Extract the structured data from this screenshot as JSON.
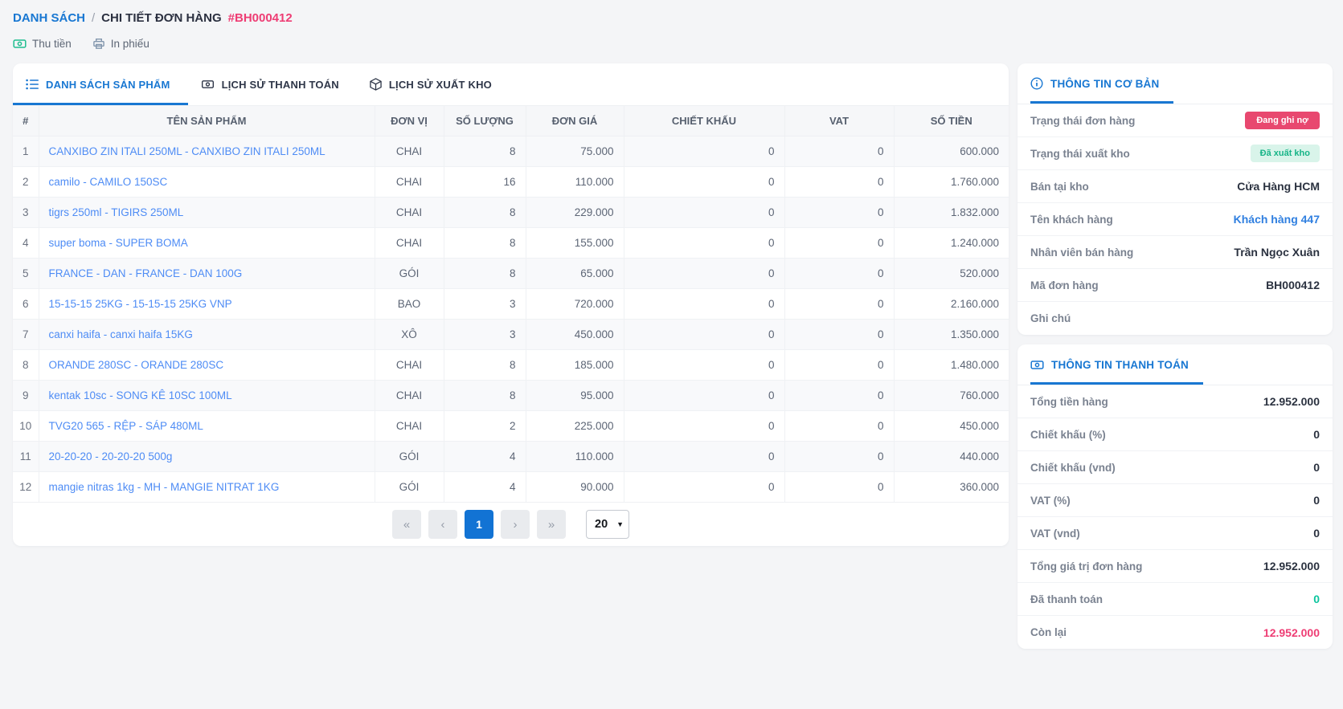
{
  "breadcrumb": {
    "list_label": "DANH SÁCH",
    "separator": "/",
    "current": "CHI TIẾT ĐƠN HÀNG",
    "order_id": "#BH000412"
  },
  "actions": {
    "collect_label": "Thu tiền",
    "print_label": "In phiếu"
  },
  "tabs": [
    {
      "label": "DANH SÁCH SẢN PHẨM",
      "icon": "list-icon",
      "active": true
    },
    {
      "label": "LỊCH SỬ THANH TOÁN",
      "icon": "money-icon",
      "active": false
    },
    {
      "label": "LỊCH SỬ XUẤT KHO",
      "icon": "package-icon",
      "active": false
    }
  ],
  "table": {
    "columns": [
      "#",
      "TÊN SẢN PHẨM",
      "ĐƠN VỊ",
      "SỐ LƯỢNG",
      "ĐƠN GIÁ",
      "CHIẾT KHẤU",
      "VAT",
      "SỐ TIỀN"
    ],
    "rows": [
      [
        "1",
        "CANXIBO ZIN ITALI 250ML - CANXIBO ZIN ITALI 250ML",
        "CHAI",
        "8",
        "75.000",
        "0",
        "0",
        "600.000"
      ],
      [
        "2",
        "camilo - CAMILO 150SC",
        "CHAI",
        "16",
        "110.000",
        "0",
        "0",
        "1.760.000"
      ],
      [
        "3",
        "tigrs 250ml - TIGIRS 250ML",
        "CHAI",
        "8",
        "229.000",
        "0",
        "0",
        "1.832.000"
      ],
      [
        "4",
        "super boma - SUPER BOMA",
        "CHAI",
        "8",
        "155.000",
        "0",
        "0",
        "1.240.000"
      ],
      [
        "5",
        "FRANCE - DAN - FRANCE - DAN 100G",
        "GÓI",
        "8",
        "65.000",
        "0",
        "0",
        "520.000"
      ],
      [
        "6",
        "15-15-15 25KG - 15-15-15 25KG VNP",
        "BAO",
        "3",
        "720.000",
        "0",
        "0",
        "2.160.000"
      ],
      [
        "7",
        "canxi haifa - canxi haifa 15KG",
        "XÔ",
        "3",
        "450.000",
        "0",
        "0",
        "1.350.000"
      ],
      [
        "8",
        "ORANDE 280SC - ORANDE 280SC",
        "CHAI",
        "8",
        "185.000",
        "0",
        "0",
        "1.480.000"
      ],
      [
        "9",
        "kentak 10sc - SONG KÊ 10SC 100ML",
        "CHAI",
        "8",
        "95.000",
        "0",
        "0",
        "760.000"
      ],
      [
        "10",
        "TVG20 565 - RỆP - SÁP 480ML",
        "CHAI",
        "2",
        "225.000",
        "0",
        "0",
        "450.000"
      ],
      [
        "11",
        "20-20-20 - 20-20-20 500g",
        "GÓI",
        "4",
        "110.000",
        "0",
        "0",
        "440.000"
      ],
      [
        "12",
        "mangie nitras 1kg - MH - MANGIE NITRAT 1KG",
        "GÓI",
        "4",
        "90.000",
        "0",
        "0",
        "360.000"
      ]
    ]
  },
  "pagination": {
    "first": "«",
    "prev": "‹",
    "page": "1",
    "next": "›",
    "last": "»",
    "page_size": "20"
  },
  "info_panel": {
    "title": "THÔNG TIN CƠ BẢN",
    "rows": [
      {
        "label": "Trạng thái đơn hàng",
        "value": "Đang ghi nợ",
        "type": "badge-danger"
      },
      {
        "label": "Trạng thái xuất kho",
        "value": "Đã xuất kho",
        "type": "badge-success"
      },
      {
        "label": "Bán tại kho",
        "value": "Cửa Hàng HCM",
        "type": "strong"
      },
      {
        "label": "Tên khách hàng",
        "value": "Khách hàng 447",
        "type": "link"
      },
      {
        "label": "Nhân viên bán hàng",
        "value": "Trần Ngọc Xuân",
        "type": "strong"
      },
      {
        "label": "Mã đơn hàng",
        "value": "BH000412",
        "type": "strong"
      },
      {
        "label": "Ghi chú",
        "value": "",
        "type": "strong"
      }
    ]
  },
  "payment_panel": {
    "title": "THÔNG TIN THANH TOÁN",
    "rows": [
      {
        "label": "Tổng tiền hàng",
        "value": "12.952.000",
        "type": "strong"
      },
      {
        "label": "Chiết khấu (%)",
        "value": "0",
        "type": "strong"
      },
      {
        "label": "Chiết khấu (vnd)",
        "value": "0",
        "type": "strong"
      },
      {
        "label": "VAT (%)",
        "value": "0",
        "type": "strong"
      },
      {
        "label": "VAT (vnd)",
        "value": "0",
        "type": "strong"
      },
      {
        "label": "Tổng giá trị đơn hàng",
        "value": "12.952.000",
        "type": "strong"
      },
      {
        "label": "Đã thanh toán",
        "value": "0",
        "type": "success"
      },
      {
        "label": "Còn lại",
        "value": "12.952.000",
        "type": "danger"
      }
    ]
  },
  "colors": {
    "accent_blue": "#1877d2",
    "link_blue": "#4e8cf5",
    "pink_red": "#ee3d74",
    "badge_danger_bg": "#e8486f",
    "badge_success_bg": "#d9f4ea",
    "badge_success_text": "#16b487",
    "teal_green": "#0cc59e",
    "page_bg": "#f4f5f7"
  }
}
